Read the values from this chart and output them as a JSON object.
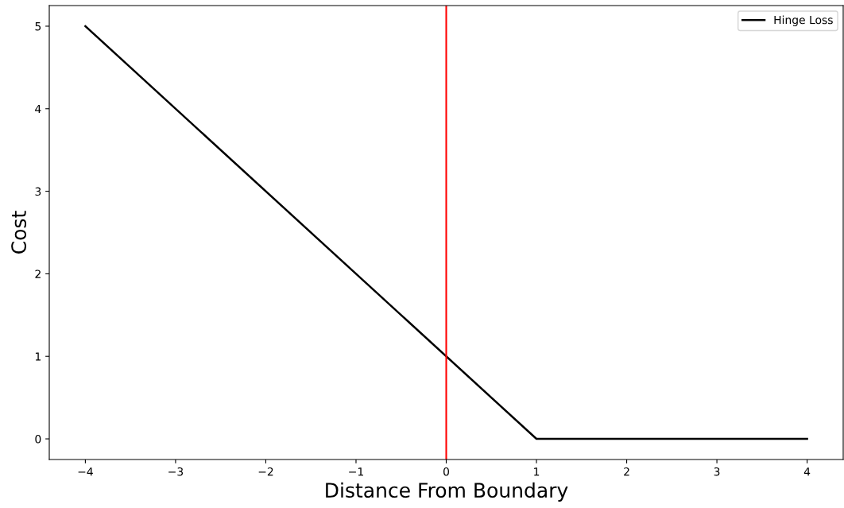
{
  "chart_data": {
    "type": "line",
    "xlabel": "Distance From Boundary",
    "ylabel": "Cost",
    "x": [
      -4,
      1,
      4
    ],
    "series": [
      {
        "name": "Hinge Loss",
        "color": "#000000",
        "values": [
          5,
          0,
          0
        ]
      }
    ],
    "xlim": [
      -4.4,
      4.4
    ],
    "ylim": [
      -0.25,
      5.25
    ],
    "xticks": [
      {
        "value": -4,
        "label": "−4"
      },
      {
        "value": -3,
        "label": "−3"
      },
      {
        "value": -2,
        "label": "−2"
      },
      {
        "value": -1,
        "label": "−1"
      },
      0,
      1,
      2,
      3,
      4
    ],
    "yticks": [
      0,
      1,
      2,
      3,
      4,
      5
    ],
    "ref_lines": [
      {
        "axis": "x",
        "value": 0,
        "color": "#ff0000"
      }
    ],
    "grid": false,
    "legend": "top right",
    "marker": "none",
    "line_style": "solid"
  }
}
